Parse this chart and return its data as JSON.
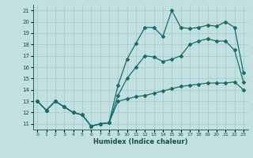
{
  "xlabel": "Humidex (Indice chaleur)",
  "bg_color": "#c2e0e0",
  "grid_color": "#9fc8c8",
  "line_color": "#1a6b6b",
  "xlim": [
    -0.5,
    23.5
  ],
  "ylim": [
    10.5,
    21.5
  ],
  "xticks": [
    0,
    1,
    2,
    3,
    4,
    5,
    6,
    7,
    8,
    9,
    10,
    11,
    12,
    13,
    14,
    15,
    16,
    17,
    18,
    19,
    20,
    21,
    22,
    23
  ],
  "yticks": [
    11,
    12,
    13,
    14,
    15,
    16,
    17,
    18,
    19,
    20,
    21
  ],
  "x": [
    0,
    1,
    2,
    3,
    4,
    5,
    6,
    7,
    8,
    9,
    10,
    11,
    12,
    13,
    14,
    15,
    16,
    17,
    18,
    19,
    20,
    21,
    22,
    23
  ],
  "y_top": [
    13,
    12.2,
    13,
    12.5,
    12,
    11.8,
    10.8,
    11.0,
    11.1,
    14.4,
    16.7,
    18.1,
    19.5,
    19.5,
    18.7,
    21.0,
    19.5,
    19.4,
    19.5,
    19.7,
    19.6,
    20.0,
    19.5,
    15.5
  ],
  "y_mid": [
    13,
    12.2,
    13,
    12.5,
    12,
    11.8,
    10.8,
    11.0,
    11.1,
    13.5,
    15.0,
    16.0,
    17.0,
    16.9,
    16.5,
    16.7,
    17.0,
    18.0,
    18.3,
    18.5,
    18.3,
    18.3,
    17.5,
    14.7
  ],
  "y_bot": [
    13,
    12.2,
    13,
    12.5,
    12,
    11.8,
    10.8,
    11.0,
    11.1,
    13.0,
    13.2,
    13.4,
    13.5,
    13.7,
    13.9,
    14.1,
    14.3,
    14.4,
    14.5,
    14.6,
    14.6,
    14.6,
    14.7,
    14.0
  ]
}
